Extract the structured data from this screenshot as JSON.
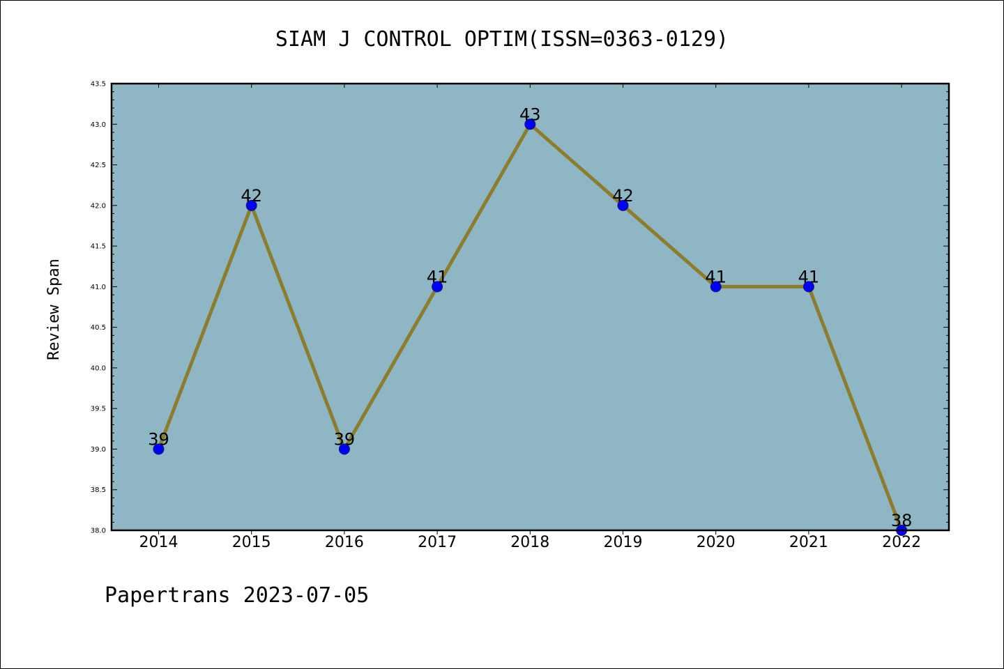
{
  "chart_data": {
    "type": "line",
    "title": "SIAM J CONTROL OPTIM(ISSN=0363-0129)",
    "xlabel": "",
    "ylabel": "Review Span",
    "categories": [
      "2014",
      "2015",
      "2016",
      "2017",
      "2018",
      "2019",
      "2020",
      "2021",
      "2022"
    ],
    "series": [
      {
        "values": [
          39,
          42,
          39,
          41,
          43,
          42,
          41,
          41,
          38
        ]
      }
    ],
    "data_labels": [
      "39",
      "42",
      "39",
      "41",
      "43",
      "42",
      "41",
      "41",
      "38"
    ],
    "ylim": [
      38.0,
      43.5
    ],
    "yticks": [
      "38.0",
      "38.5",
      "39.0",
      "39.5",
      "40.0",
      "40.5",
      "41.0",
      "41.5",
      "42.0",
      "42.5",
      "43.0",
      "43.5"
    ],
    "grid": false,
    "colors": {
      "plot_background": "#8fb6c4",
      "line": "#8b7d2b",
      "marker": "#0000ff"
    }
  },
  "footer": "Papertrans 2023-07-05"
}
